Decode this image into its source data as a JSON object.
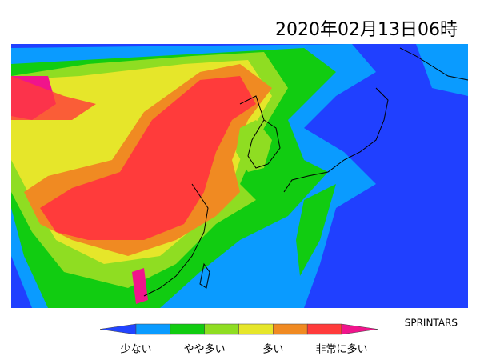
{
  "header": {
    "title": "2020年02月13日06時"
  },
  "credit": "SPRINTARS",
  "legend": {
    "colors": [
      "#2244ff",
      "#0a9bff",
      "#11cc11",
      "#8fdd22",
      "#e6e62a",
      "#f08a22",
      "#ff3b3b",
      "#f0148c"
    ],
    "labels": [
      "少ない",
      "やや多い",
      "多い",
      "非常に多い"
    ]
  }
}
